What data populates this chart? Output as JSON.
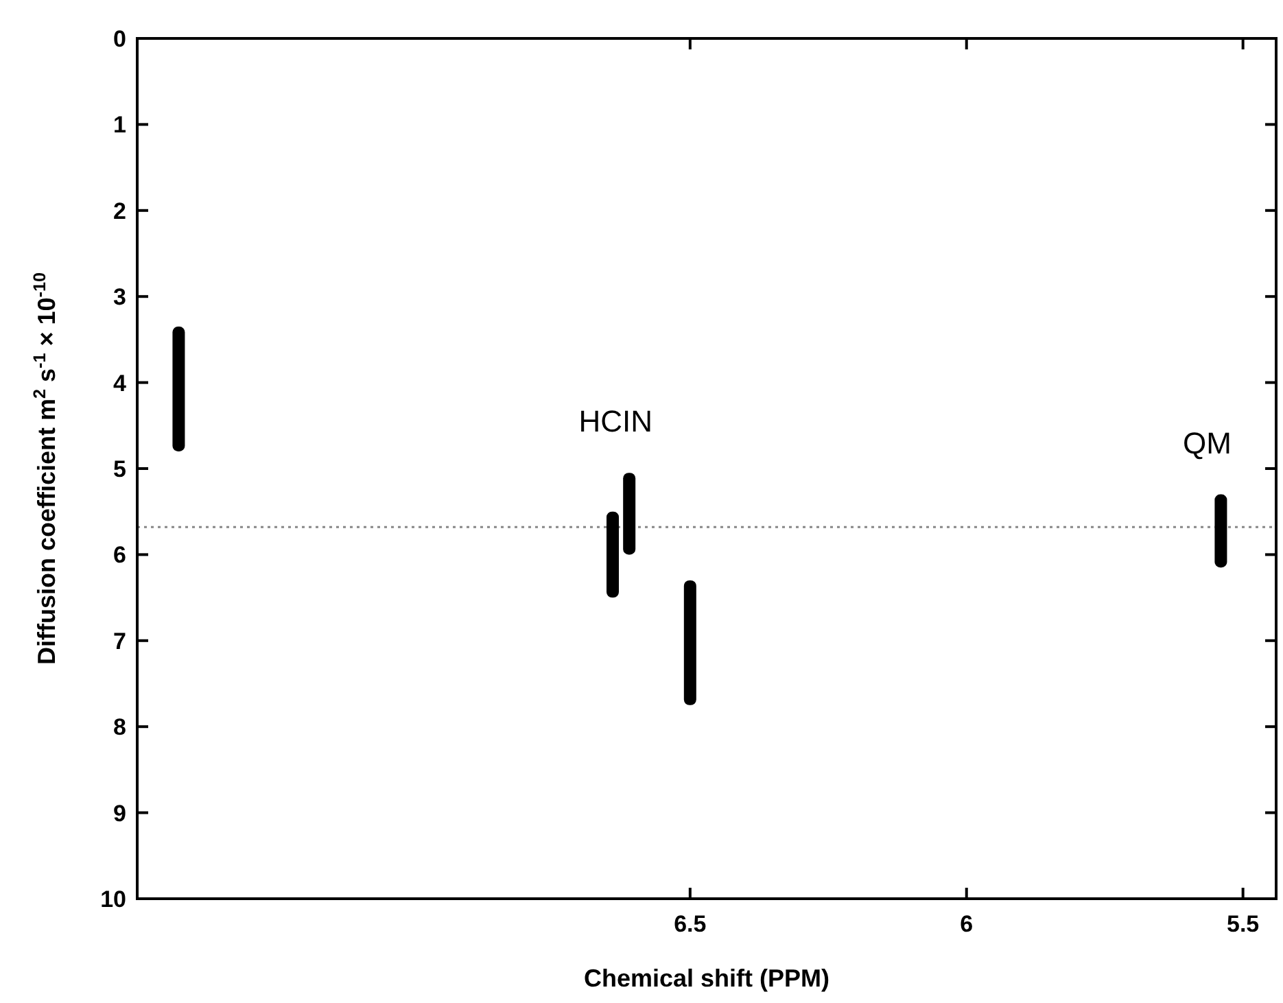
{
  "chart_data": {
    "type": "bar",
    "xlabel": "Chemical shift (PPM)",
    "ylabel": "Diffusion coefficient m$^{2}$ s$^{-1}$ × 10$^{-10}$",
    "x": [
      7.425,
      6.64,
      6.61,
      6.5,
      5.54
    ],
    "base": [
      3.35,
      5.5,
      5.05,
      6.3,
      5.3
    ],
    "values": [
      1.45,
      1.0,
      0.95,
      1.45,
      0.85
    ],
    "color": "#000000",
    "xlim": [
      7.5,
      5.44
    ],
    "xticks": [
      6.5,
      6,
      5.5
    ],
    "ylim": [
      10,
      0
    ],
    "yticks": [
      0,
      1,
      2,
      3,
      4,
      5,
      6,
      7,
      8,
      9,
      10
    ],
    "ref_lines": [
      {
        "axis": "y",
        "value": 5.68,
        "color": "#888888",
        "line_style": "dotted"
      }
    ],
    "annotations": [
      {
        "text": "HCIN",
        "x": 6.61,
        "y": 5.05
      },
      {
        "text": "QM",
        "x": 5.54,
        "y": 5.3
      }
    ],
    "grid": false
  }
}
